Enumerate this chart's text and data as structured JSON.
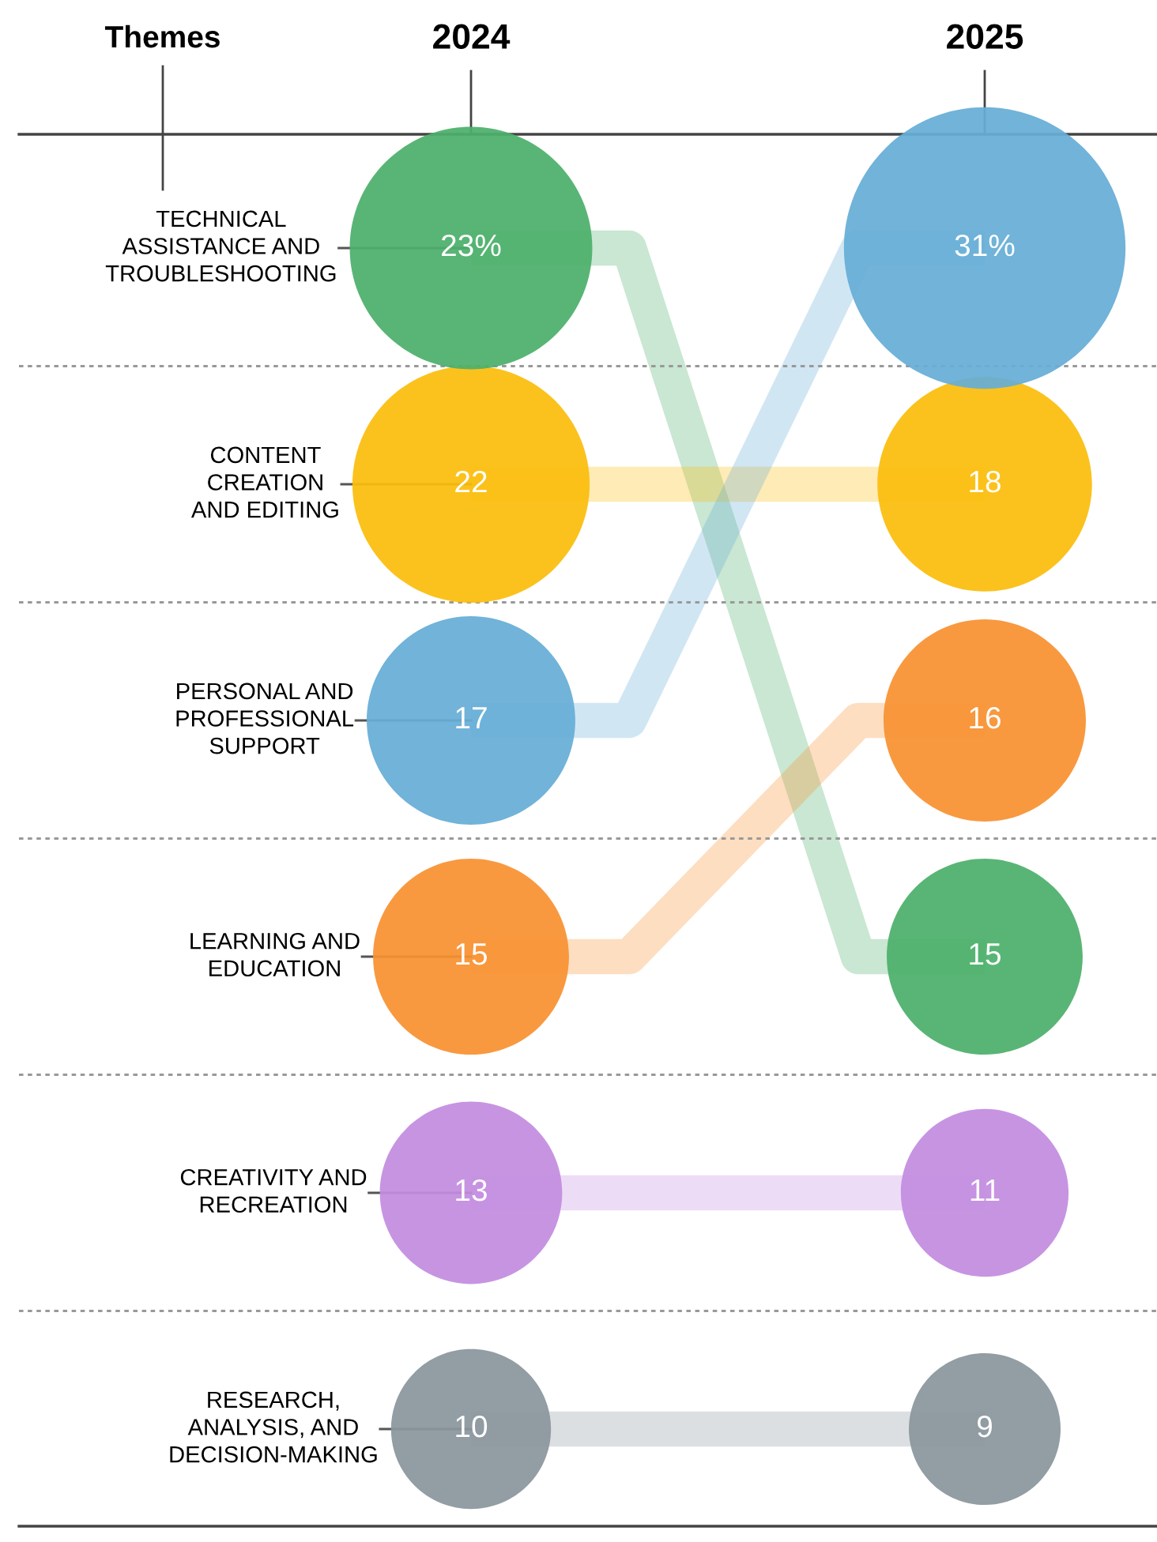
{
  "chart_data": {
    "type": "other",
    "ylabel": "Themes",
    "categories": [
      "2024",
      "2025"
    ],
    "series": [
      {
        "name": "TECHNICAL\nASSISTANCE AND\nTROUBLESHOOTING",
        "color": "#4caf6a",
        "values": [
          23,
          15
        ],
        "value_labels": [
          "23%",
          "15"
        ]
      },
      {
        "name": "CONTENT\nCREATION\nAND EDITING",
        "color": "#fbbd0d",
        "values": [
          22,
          18
        ],
        "value_labels": [
          "22",
          "18"
        ]
      },
      {
        "name": "PERSONAL AND\nPROFESSIONAL\nSUPPORT",
        "color": "#66add6",
        "values": [
          17,
          31
        ],
        "value_labels": [
          "17",
          "31%"
        ]
      },
      {
        "name": "LEARNING AND\nEDUCATION",
        "color": "#f79131",
        "values": [
          15,
          16
        ],
        "value_labels": [
          "15",
          "16"
        ]
      },
      {
        "name": "CREATIVITY AND\nRECREATION",
        "color": "#c38ce0",
        "values": [
          13,
          11
        ],
        "value_labels": [
          "13",
          "11"
        ]
      },
      {
        "name": "RESEARCH,\nANALYSIS, AND\nDECISION-MAKING",
        "color": "#8a969d",
        "values": [
          10,
          9
        ],
        "value_labels": [
          "10",
          "9"
        ]
      }
    ]
  }
}
